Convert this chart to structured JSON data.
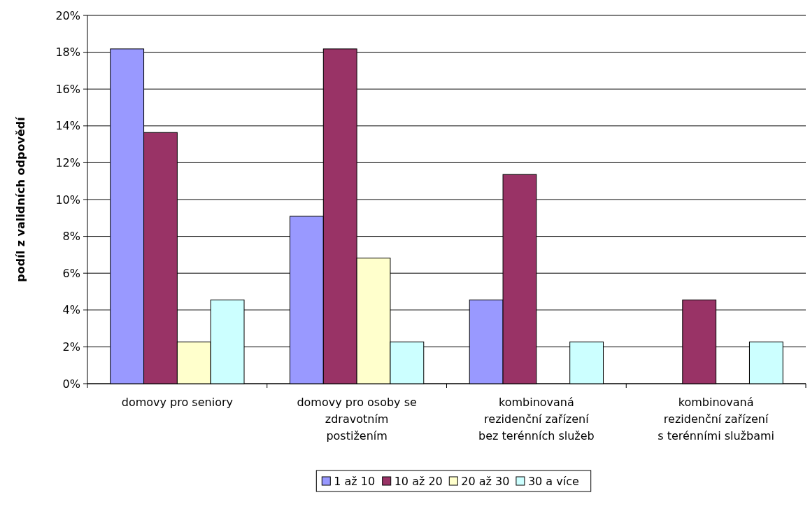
{
  "chart_data": {
    "type": "bar",
    "ylabel": "podíl z validních odpovědí",
    "categories": [
      "domovy pro seniory",
      "domovy pro osoby se zdravotním postižením",
      "kombinovaná rezidenční zařízení bez terénních služeb",
      "kombinovaná rezidenční zařízení s terénními službami"
    ],
    "series": [
      {
        "name": "1 až 10",
        "color": "#9999ff",
        "values": [
          18.18,
          9.09,
          4.55,
          0
        ]
      },
      {
        "name": "10 až 20",
        "color": "#993366",
        "values": [
          13.64,
          18.18,
          11.36,
          4.55
        ]
      },
      {
        "name": "20 až 30",
        "color": "#ffffcc",
        "values": [
          2.27,
          6.82,
          0,
          0
        ]
      },
      {
        "name": "30 a více",
        "color": "#ccffff",
        "values": [
          4.55,
          2.27,
          2.27,
          2.27
        ]
      }
    ],
    "ylim": [
      0,
      20
    ],
    "yticks": [
      {
        "value": 0,
        "label": "0%"
      },
      {
        "value": 2,
        "label": "2%"
      },
      {
        "value": 4,
        "label": "4%"
      },
      {
        "value": 6,
        "label": "6%"
      },
      {
        "value": 8,
        "label": "8%"
      },
      {
        "value": 10,
        "label": "10%"
      },
      {
        "value": 12,
        "label": "12%"
      },
      {
        "value": 14,
        "label": "14%"
      },
      {
        "value": 16,
        "label": "16%"
      },
      {
        "value": 18,
        "label": "18%"
      },
      {
        "value": 20,
        "label": "20%"
      }
    ],
    "grid": "y",
    "legend": "bottom"
  }
}
